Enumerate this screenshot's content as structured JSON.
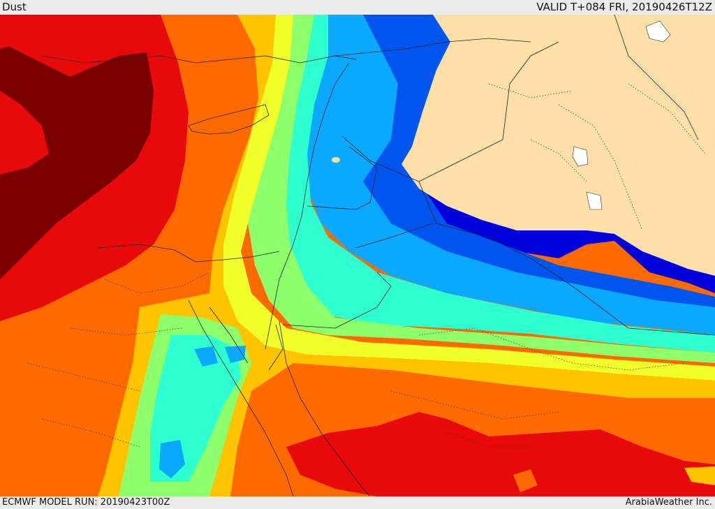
{
  "header": {
    "title": "Dust",
    "valid_time": "VALID T+084 FRI, 20190426T12Z"
  },
  "footer": {
    "model_run": "ECMWF MODEL RUN: 20190423T00Z",
    "credit": "ArabiaWeather Inc."
  },
  "colors": {
    "extreme": "#7a0000",
    "very_high": "#e80a0a",
    "high": "#ff6a00",
    "moderate_high": "#ffc400",
    "moderate": "#f0ff2a",
    "low_moderate": "#8cff6a",
    "low": "#2effd0",
    "very_low": "#0aa8ff",
    "minimal": "#0055ee",
    "trace": "#0000dd",
    "no_data_land": "#fde0a8"
  }
}
